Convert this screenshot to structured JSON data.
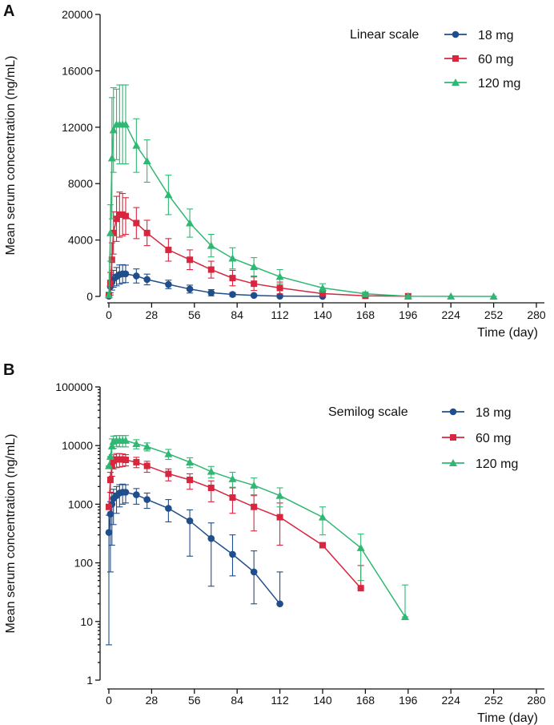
{
  "chart_data": [
    {
      "panel": "A",
      "type": "line",
      "scale_label": "Linear scale",
      "yscale": "linear",
      "xlabel": "Time (day)",
      "ylabel": "Mean serum concentration (ng/mL)",
      "xlim": [
        0,
        280
      ],
      "ylim": [
        0,
        20000
      ],
      "xticks": [
        0,
        28,
        56,
        84,
        112,
        140,
        168,
        196,
        224,
        252,
        280
      ],
      "yticks": [
        0,
        4000,
        8000,
        12000,
        16000,
        20000
      ],
      "xtick_labels": [
        "0",
        "28",
        "56",
        "84",
        "112",
        "140",
        "168",
        "196",
        "224",
        "252",
        "280"
      ],
      "ytick_labels": [
        "0",
        "4000",
        "8000",
        "12000",
        "16000",
        "20000"
      ],
      "legend_position": "top-right",
      "series": [
        {
          "name": "18 mg",
          "color": "#1f4e8c",
          "marker": "circle",
          "x": [
            0,
            1,
            2,
            3,
            5,
            7,
            9,
            11,
            18,
            25,
            39,
            53,
            67,
            81,
            95,
            112,
            140
          ],
          "y": [
            20,
            700,
            1000,
            1250,
            1400,
            1550,
            1600,
            1600,
            1450,
            1200,
            850,
            520,
            260,
            140,
            70,
            20,
            5
          ],
          "err": [
            20,
            450,
            550,
            600,
            650,
            680,
            650,
            620,
            500,
            380,
            300,
            280,
            220,
            130,
            70,
            20,
            5
          ]
        },
        {
          "name": "60 mg",
          "color": "#d7263d",
          "marker": "square",
          "x": [
            0,
            1,
            2,
            3,
            5,
            7,
            9,
            11,
            18,
            25,
            39,
            53,
            67,
            81,
            95,
            112,
            140,
            168,
            196
          ],
          "y": [
            100,
            900,
            2600,
            4500,
            5500,
            5800,
            5800,
            5700,
            5200,
            4500,
            3300,
            2600,
            1900,
            1300,
            900,
            600,
            200,
            40,
            10
          ],
          "err": [
            150,
            800,
            1200,
            1500,
            1600,
            1600,
            1500,
            1300,
            1100,
            900,
            800,
            700,
            600,
            550,
            480,
            420,
            150,
            60,
            10
          ]
        },
        {
          "name": "120 mg",
          "color": "#2eb872",
          "marker": "triangle",
          "x": [
            0,
            1,
            2,
            3,
            5,
            7,
            9,
            11,
            18,
            25,
            39,
            53,
            67,
            81,
            95,
            112,
            140,
            168,
            196,
            224,
            252
          ],
          "y": [
            100,
            4500,
            9800,
            11800,
            12200,
            12200,
            12200,
            12200,
            10700,
            9600,
            7200,
            5200,
            3600,
            2700,
            2100,
            1400,
            600,
            180,
            12,
            5,
            2
          ],
          "err": [
            200,
            2000,
            4300,
            3000,
            2500,
            2800,
            2800,
            2800,
            1900,
            1500,
            1400,
            1000,
            800,
            750,
            650,
            500,
            300,
            130,
            30,
            5,
            2
          ]
        }
      ]
    },
    {
      "panel": "B",
      "type": "line",
      "scale_label": "Semilog scale",
      "yscale": "log",
      "xlabel": "Time (day)",
      "ylabel": "Mean serum concentration (ng/mL)",
      "xlim": [
        0,
        280
      ],
      "ylim": [
        1,
        100000
      ],
      "xticks": [
        0,
        28,
        56,
        84,
        112,
        140,
        168,
        196,
        224,
        252,
        280
      ],
      "yticks": [
        1,
        10,
        100,
        1000,
        10000,
        100000
      ],
      "xtick_labels": [
        "0",
        "28",
        "56",
        "84",
        "112",
        "140",
        "168",
        "196",
        "224",
        "252",
        "280"
      ],
      "ytick_labels": [
        "1",
        "10",
        "100",
        "1000",
        "10000",
        "100000"
      ],
      "legend_position": "top-right",
      "series": [
        {
          "name": "18 mg",
          "color": "#1f4e8c",
          "marker": "circle",
          "x": [
            0,
            1,
            2,
            3,
            5,
            7,
            9,
            11,
            18,
            25,
            39,
            53,
            67,
            81,
            95,
            112
          ],
          "y": [
            330,
            680,
            1000,
            1250,
            1400,
            1550,
            1600,
            1600,
            1450,
            1200,
            850,
            520,
            260,
            140,
            70,
            20
          ],
          "err_low": [
            4,
            70,
            200,
            450,
            700,
            900,
            1000,
            1050,
            1000,
            850,
            500,
            130,
            40,
            60,
            20,
            20
          ],
          "err_high": [
            650,
            1100,
            1550,
            1800,
            2000,
            2150,
            2200,
            2150,
            1850,
            1550,
            1200,
            800,
            480,
            300,
            160,
            70
          ]
        },
        {
          "name": "60 mg",
          "color": "#d7263d",
          "marker": "square",
          "x": [
            0,
            1,
            2,
            3,
            5,
            7,
            9,
            11,
            18,
            25,
            39,
            53,
            67,
            81,
            95,
            112,
            140,
            165
          ],
          "y": [
            900,
            2600,
            4500,
            5500,
            5800,
            5800,
            5800,
            5700,
            5200,
            4500,
            3300,
            2600,
            1900,
            1300,
            900,
            600,
            200,
            37
          ],
          "err_low": [
            900,
            1600,
            3000,
            4000,
            4200,
            4300,
            4400,
            4500,
            4200,
            3500,
            2500,
            1800,
            1100,
            700,
            350,
            200,
            200,
            37
          ],
          "err_high": [
            900,
            3500,
            6000,
            7000,
            7300,
            7300,
            7200,
            7000,
            6300,
            5400,
            4000,
            3300,
            2500,
            1900,
            1400,
            1050,
            200,
            90
          ]
        },
        {
          "name": "120 mg",
          "color": "#2eb872",
          "marker": "triangle",
          "x": [
            0,
            1,
            2,
            3,
            5,
            7,
            9,
            11,
            18,
            25,
            39,
            53,
            67,
            81,
            95,
            112,
            140,
            165,
            194
          ],
          "y": [
            4500,
            6500,
            9800,
            11800,
            12200,
            12200,
            12200,
            12200,
            10700,
            9600,
            7200,
            5200,
            3600,
            2700,
            2100,
            1400,
            600,
            180,
            12
          ],
          "err_low": [
            4500,
            6500,
            7000,
            9000,
            9700,
            9500,
            9500,
            9500,
            8800,
            8100,
            5800,
            4200,
            2800,
            1950,
            1450,
            900,
            300,
            50,
            12
          ],
          "err_high": [
            4500,
            6500,
            13000,
            14500,
            14800,
            14800,
            14800,
            14800,
            12600,
            11100,
            8600,
            6200,
            4400,
            3500,
            2800,
            1900,
            900,
            310,
            42
          ]
        }
      ]
    }
  ]
}
